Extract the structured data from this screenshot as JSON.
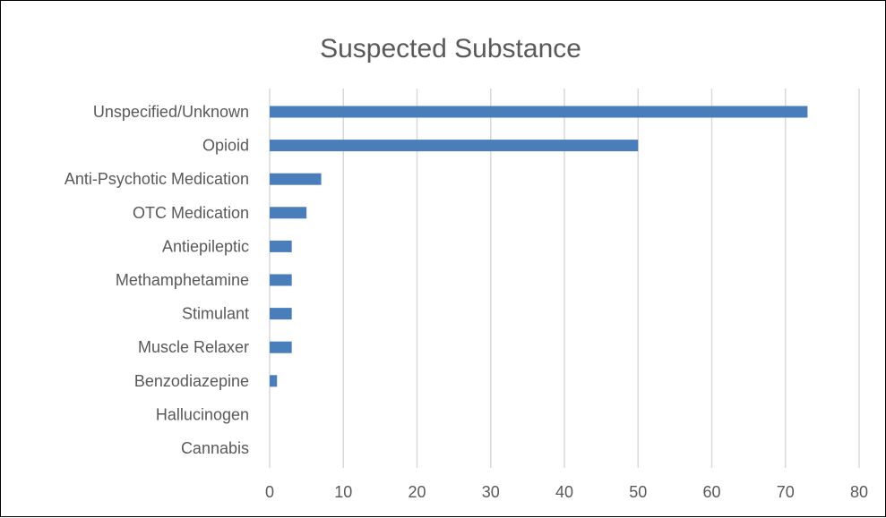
{
  "chart_data": {
    "type": "bar",
    "orientation": "horizontal",
    "title": "Suspected Substance",
    "xlabel": "",
    "ylabel": "",
    "categories": [
      "Unspecified/Unknown",
      "Opioid",
      "Anti-Psychotic Medication",
      "OTC Medication",
      "Antiepileptic",
      "Methamphetamine",
      "Stimulant",
      "Muscle Relaxer",
      "Benzodiazepine",
      "Hallucinogen",
      "Cannabis"
    ],
    "values": [
      73,
      50,
      7,
      5,
      3,
      3,
      3,
      3,
      1,
      0,
      0
    ],
    "xlim": [
      0,
      80
    ],
    "xticks": [
      "0",
      "10",
      "20",
      "30",
      "40",
      "50",
      "60",
      "70",
      "80"
    ],
    "grid": "vertical",
    "legend": "none",
    "colors": {
      "bar": "#4A7EBB",
      "grid": "#D9D9D9",
      "text": "#595959",
      "frame": "#000000"
    }
  }
}
